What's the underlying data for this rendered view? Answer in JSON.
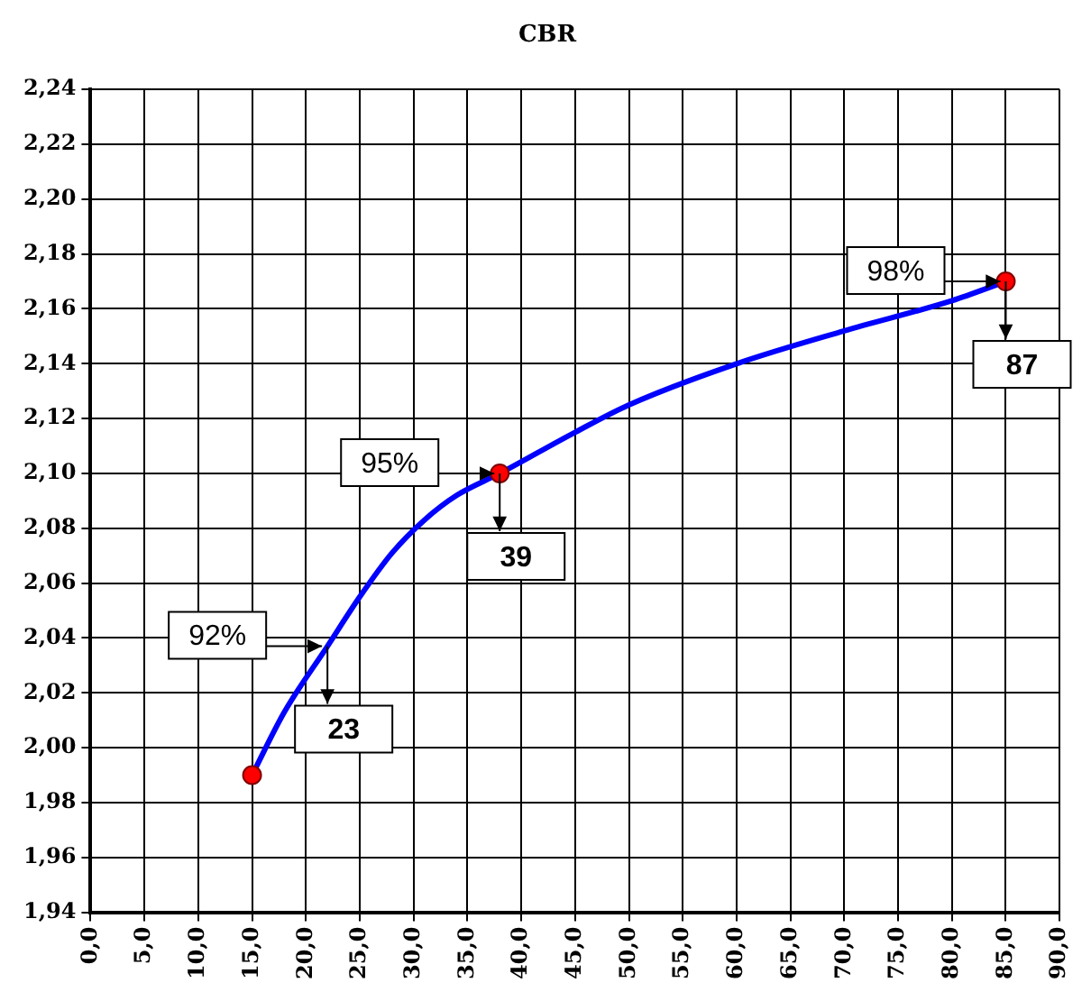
{
  "chart_data": {
    "type": "line",
    "title": "CBR",
    "xlim": [
      0,
      90
    ],
    "xticks": [
      {
        "value": 0,
        "label": "0,0"
      },
      {
        "value": 5,
        "label": "5,0"
      },
      {
        "value": 10,
        "label": "10,0"
      },
      {
        "value": 15,
        "label": "15,0"
      },
      {
        "value": 20,
        "label": "20,0"
      },
      {
        "value": 25,
        "label": "25,0"
      },
      {
        "value": 30,
        "label": "30,0"
      },
      {
        "value": 35,
        "label": "35,0"
      },
      {
        "value": 40,
        "label": "40,0"
      },
      {
        "value": 45,
        "label": "45,0"
      },
      {
        "value": 50,
        "label": "50,0"
      },
      {
        "value": 55,
        "label": "55,0"
      },
      {
        "value": 60,
        "label": "60,0"
      },
      {
        "value": 65,
        "label": "65,0"
      },
      {
        "value": 70,
        "label": "70,0"
      },
      {
        "value": 75,
        "label": "75,0"
      },
      {
        "value": 80,
        "label": "80,0"
      },
      {
        "value": 85,
        "label": "85,0"
      },
      {
        "value": 90,
        "label": "90,0"
      }
    ],
    "ylim": [
      1.94,
      2.24
    ],
    "yticks": [
      {
        "value": 1.94,
        "label": "1,94"
      },
      {
        "value": 1.96,
        "label": "1,96"
      },
      {
        "value": 1.98,
        "label": "1,98"
      },
      {
        "value": 2.0,
        "label": "2,00"
      },
      {
        "value": 2.02,
        "label": "2,02"
      },
      {
        "value": 2.04,
        "label": "2,04"
      },
      {
        "value": 2.06,
        "label": "2,06"
      },
      {
        "value": 2.08,
        "label": "2,08"
      },
      {
        "value": 2.1,
        "label": "2,10"
      },
      {
        "value": 2.12,
        "label": "2,12"
      },
      {
        "value": 2.14,
        "label": "2,14"
      },
      {
        "value": 2.16,
        "label": "2,16"
      },
      {
        "value": 2.18,
        "label": "2,18"
      },
      {
        "value": 2.2,
        "label": "2,20"
      },
      {
        "value": 2.22,
        "label": "2,22"
      },
      {
        "value": 2.24,
        "label": "2,24"
      }
    ],
    "grid": true,
    "legend": false,
    "series": [
      {
        "type": "line",
        "color": "#0000ff",
        "marker": "none",
        "x": [
          15,
          18,
          22,
          25,
          28,
          31,
          34,
          38,
          45,
          50,
          60,
          70,
          80,
          85
        ],
        "values": [
          1.99,
          2.013,
          2.037,
          2.055,
          2.071,
          2.083,
          2.092,
          2.1,
          2.115,
          2.125,
          2.14,
          2.152,
          2.163,
          2.17
        ]
      },
      {
        "type": "scatter",
        "color": "#ff0000",
        "marker": "circle",
        "x": [
          15,
          38,
          85
        ],
        "values": [
          1.99,
          2.1,
          2.17
        ]
      }
    ],
    "annotations": [
      {
        "text": "92%",
        "x": 22,
        "y": 2.037
      },
      {
        "text": "23",
        "x": 22,
        "y": 2.037
      },
      {
        "text": "95%",
        "x": 38,
        "y": 2.1
      },
      {
        "text": "39",
        "x": 38,
        "y": 2.1
      },
      {
        "text": "98%",
        "x": 85,
        "y": 2.17
      },
      {
        "text": "87",
        "x": 85,
        "y": 2.17
      }
    ]
  }
}
